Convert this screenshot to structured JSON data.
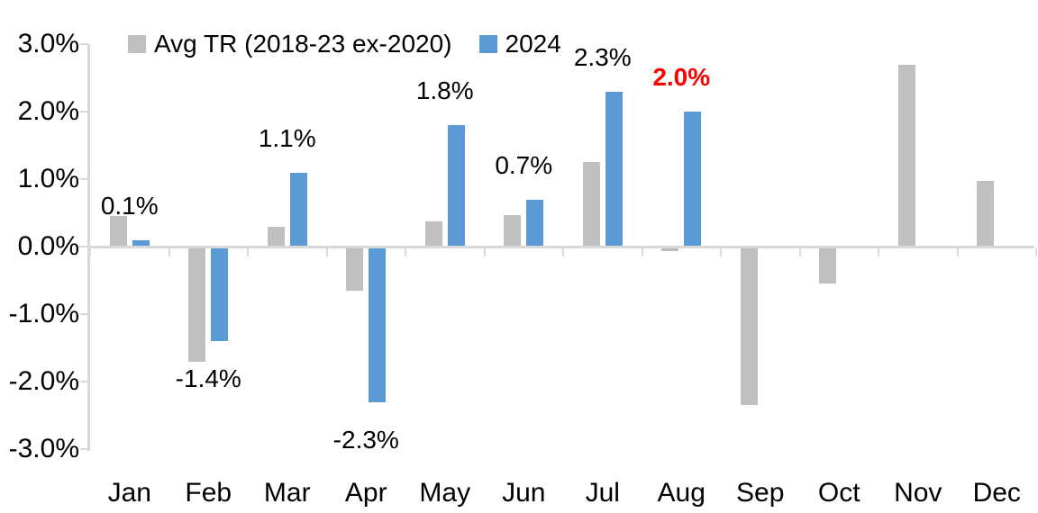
{
  "chart_data": {
    "type": "bar",
    "title": "",
    "xlabel": "",
    "ylabel": "",
    "categories": [
      "Jan",
      "Feb",
      "Mar",
      "Apr",
      "May",
      "Jun",
      "Jul",
      "Aug",
      "Sep",
      "Oct",
      "Nov",
      "Dec"
    ],
    "series": [
      {
        "name": "Avg TR (2018-23 ex-2020)",
        "color": "#BFBFBF",
        "values": [
          0.45,
          -1.7,
          0.3,
          -0.65,
          0.37,
          0.47,
          1.25,
          -0.07,
          -2.35,
          -0.55,
          2.7,
          0.97
        ]
      },
      {
        "name": "2024",
        "color": "#5B9BD5",
        "values": [
          0.1,
          -1.4,
          1.1,
          -2.3,
          1.8,
          0.7,
          2.3,
          2.0,
          null,
          null,
          null,
          null
        ],
        "data_labels": [
          "0.1%",
          "-1.4%",
          "1.1%",
          "-2.3%",
          "1.8%",
          "0.7%",
          "2.3%",
          "2.0%"
        ]
      }
    ],
    "highlight": {
      "series": "2024",
      "category": "Aug",
      "label_index": 7,
      "color": "#FF0000",
      "bold": true
    },
    "yticks": [
      "3.0%",
      "2.0%",
      "1.0%",
      "0.0%",
      "-1.0%",
      "-2.0%",
      "-3.0%"
    ],
    "ytick_values": [
      3,
      2,
      1,
      0,
      -1,
      -2,
      -3
    ],
    "ylim": [
      -3,
      3
    ],
    "grid": false,
    "legend_position": "top",
    "colors": {
      "axis": "#D9D9D9",
      "text": "#000000",
      "label_default": "#000000",
      "label_highlight": "#FF0000"
    }
  }
}
